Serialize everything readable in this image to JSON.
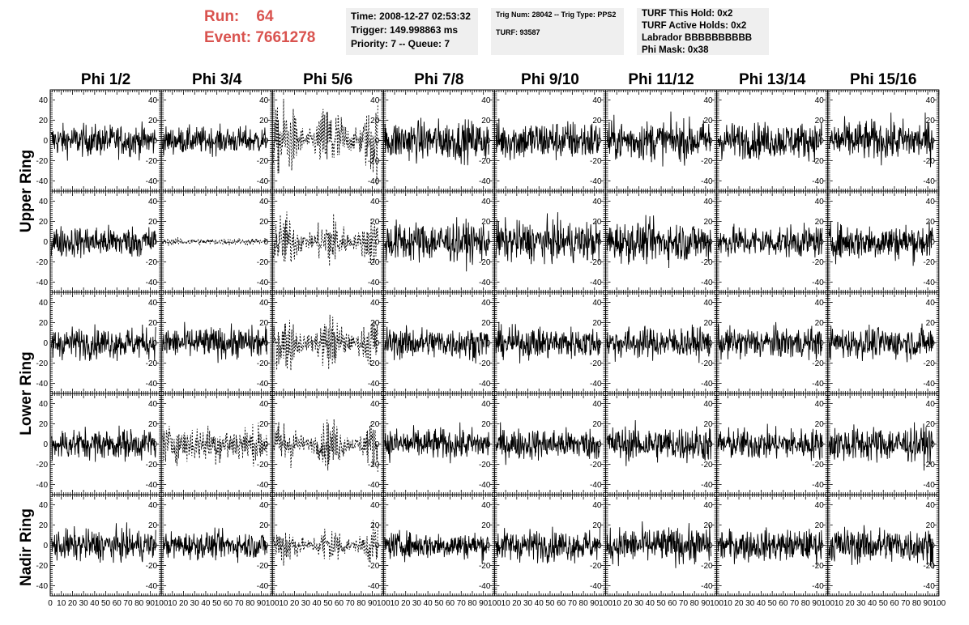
{
  "header": {
    "run_label": "Run:",
    "run_value": "64",
    "event_label": "Event:",
    "event_value": "7661278",
    "info_time": "Time: 2008-12-27 02:53:32",
    "info_trigger": "Trigger: 149.998863 ms",
    "info_priority": "Priority: 7 -- Queue: 7",
    "info_trignum": "Trig Num: 28042 -- Trig Type: PPS2",
    "info_turf": "TURF: 93587",
    "info_hold": "TURF This Hold: 0x2",
    "info_active": "TURF Active Holds: 0x2",
    "info_labrador": "Labrador BBBBBBBBBB",
    "info_phimask": "Phi Mask: 0x38",
    "colors": {
      "run_event": "#d9534f",
      "info_bg": "#efefef"
    }
  },
  "chart_data": {
    "type": "line",
    "columns": [
      "Phi 1/2",
      "Phi 3/4",
      "Phi 5/6",
      "Phi 7/8",
      "Phi 9/10",
      "Phi 11/12",
      "Phi 13/14",
      "Phi 15/16"
    ],
    "rows": [
      "Upper Ring",
      "Lower Ring",
      "Nadir Ring"
    ],
    "row_label_rows": [
      0,
      1,
      2,
      3,
      4
    ],
    "xlim": [
      0,
      100
    ],
    "ylim": [
      -50,
      50
    ],
    "x_tick_labels": [
      "0",
      "10",
      "20",
      "30",
      "40",
      "50",
      "60",
      "70",
      "80",
      "90",
      "100"
    ],
    "y_tick_labels": [
      "-40",
      "-20",
      "0",
      "20",
      "40"
    ],
    "y_tick_values": [
      -40,
      -20,
      0,
      20,
      40
    ],
    "x_tick_values": [
      0,
      10,
      20,
      30,
      40,
      50,
      60,
      70,
      80,
      90,
      100
    ],
    "panels_amplitude": [
      [
        14,
        12,
        22,
        18,
        18,
        18,
        16,
        18
      ],
      [
        14,
        3,
        16,
        18,
        18,
        18,
        14,
        16
      ],
      [
        14,
        14,
        16,
        14,
        14,
        14,
        14,
        14
      ],
      [
        14,
        16,
        14,
        14,
        14,
        16,
        14,
        16
      ],
      [
        14,
        12,
        12,
        12,
        14,
        16,
        14,
        16
      ]
    ],
    "panels_dashed": [
      [
        false,
        false,
        true,
        false,
        false,
        false,
        false,
        false
      ],
      [
        false,
        true,
        true,
        false,
        false,
        false,
        false,
        false
      ],
      [
        false,
        false,
        true,
        false,
        false,
        false,
        false,
        false
      ],
      [
        false,
        true,
        true,
        false,
        false,
        false,
        false,
        false
      ],
      [
        false,
        false,
        true,
        false,
        false,
        false,
        false,
        false
      ]
    ],
    "samples_per_panel": 260,
    "note_waveforms": "noise-like waveforms centered at 0 ADC"
  }
}
